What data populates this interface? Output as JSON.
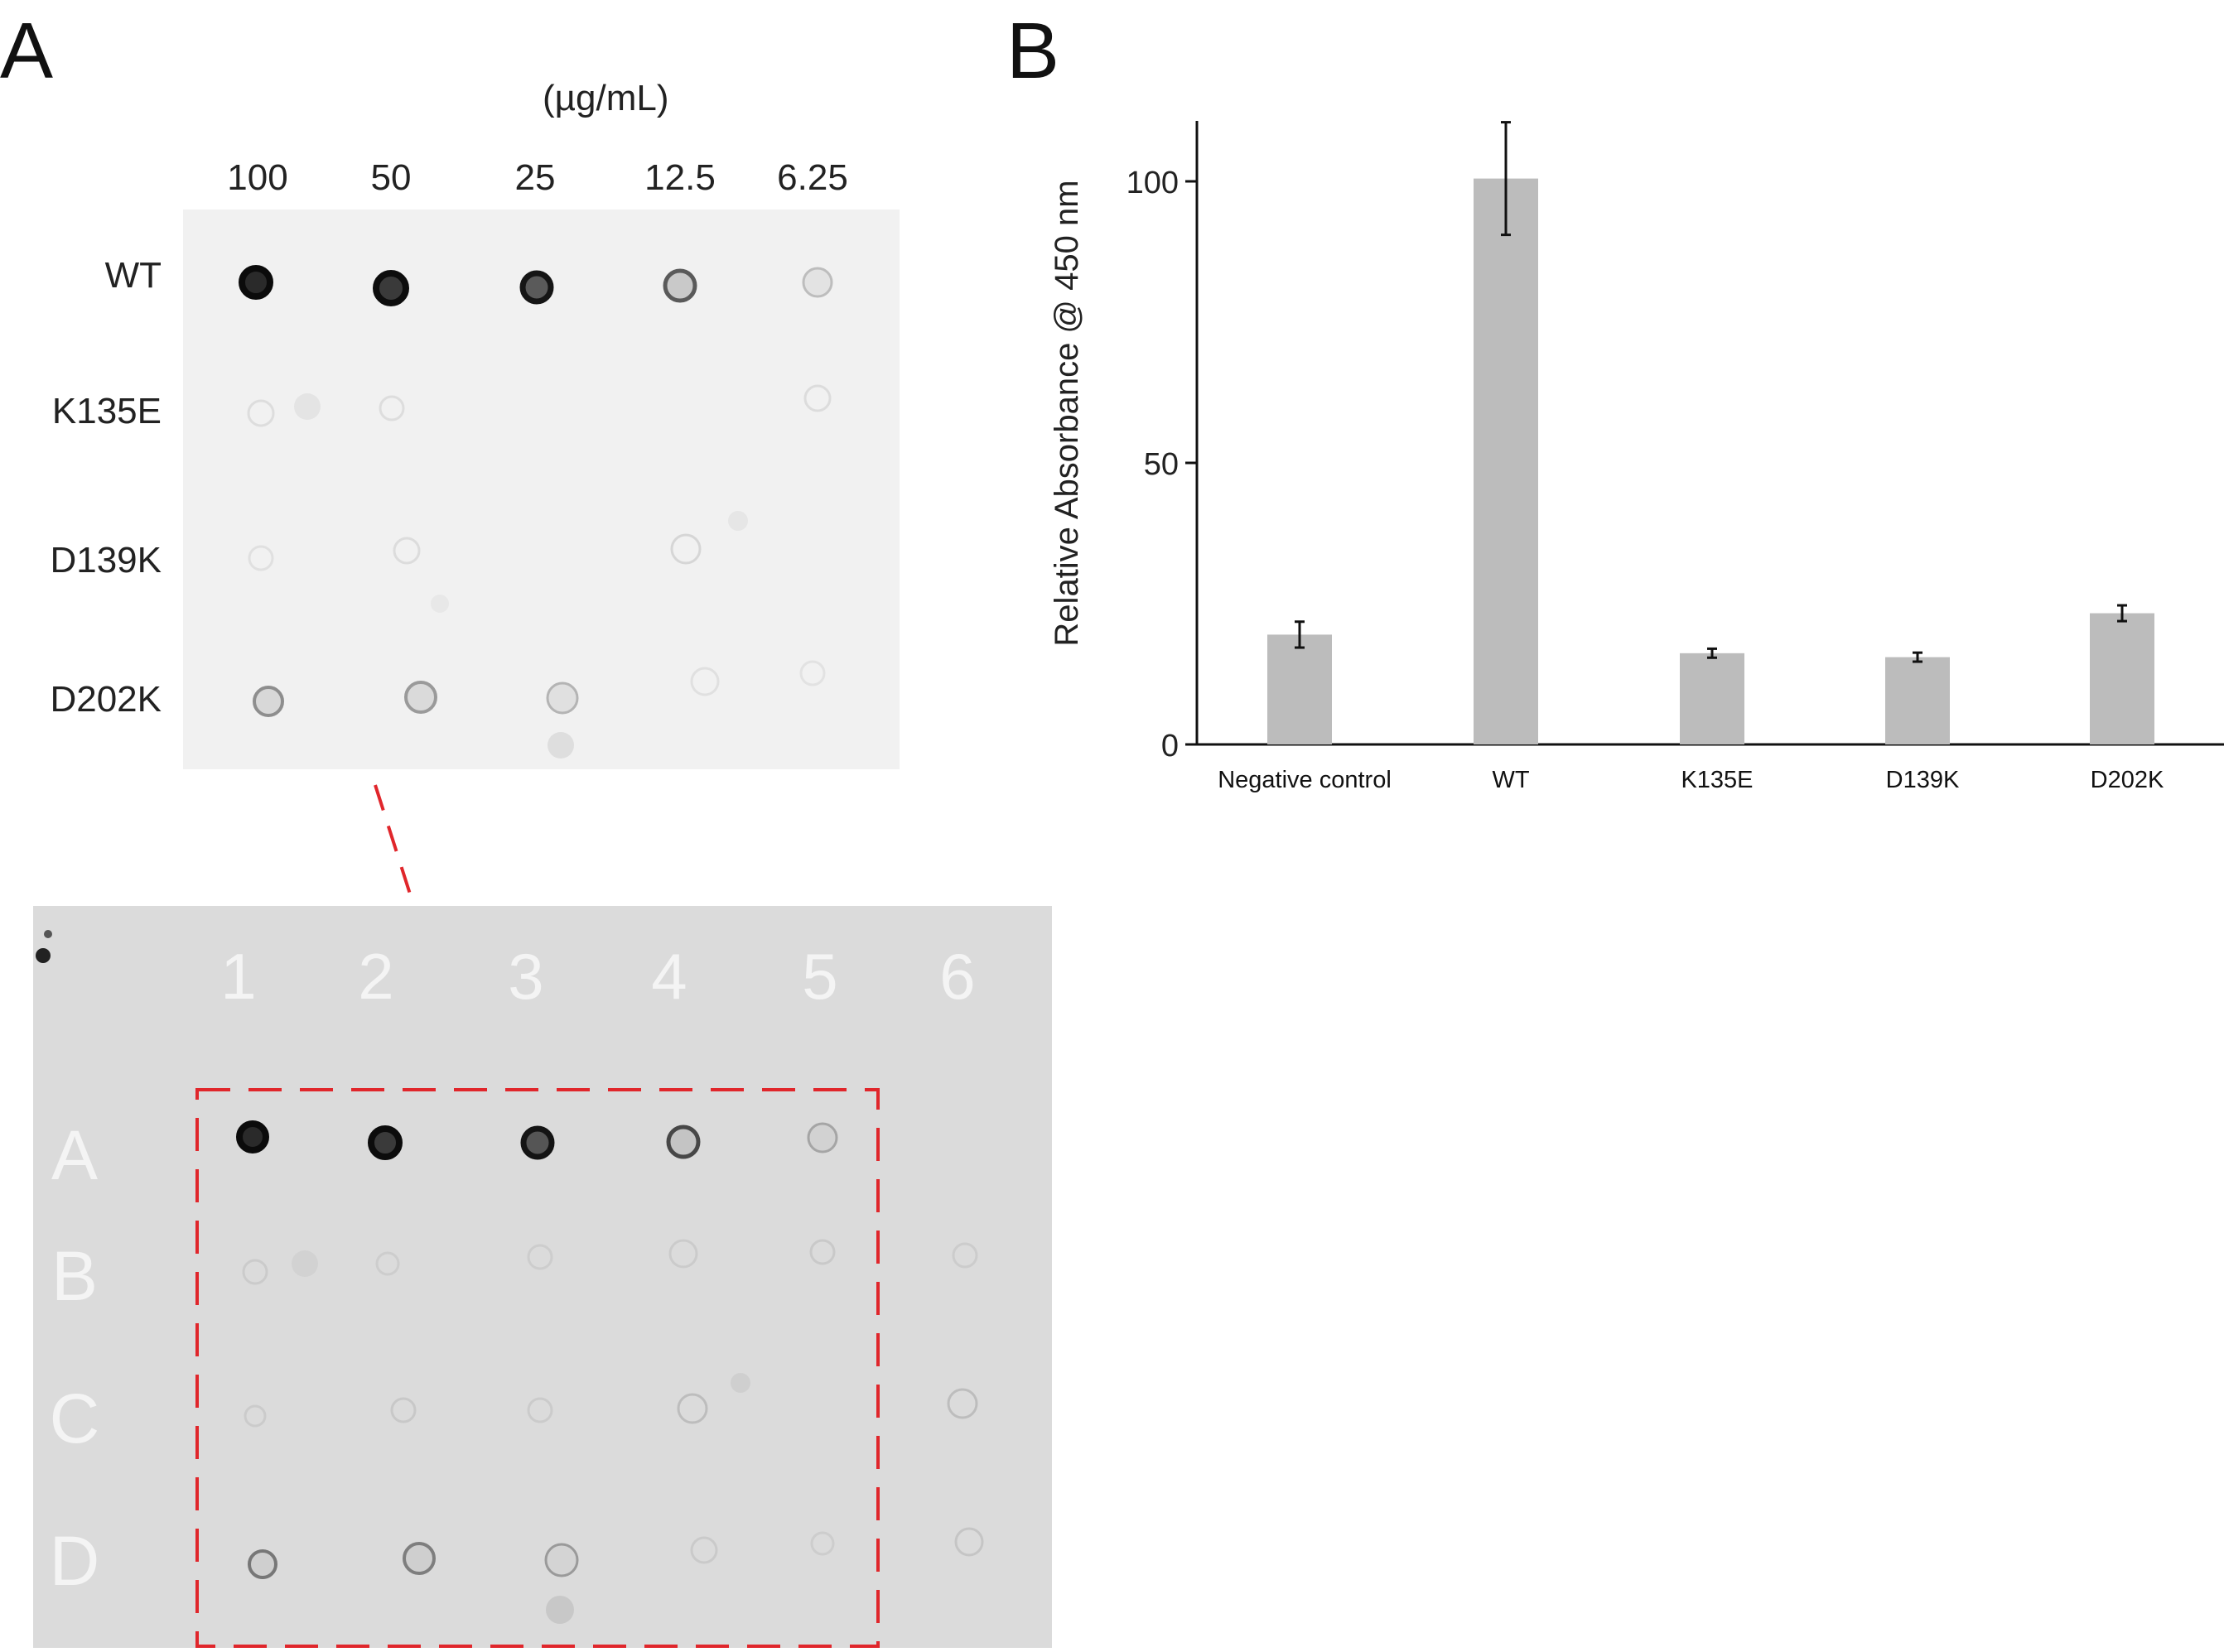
{
  "panel_a": {
    "letter": "A",
    "unit": "(µg/mL)",
    "concentrations": [
      "100",
      "50",
      "25",
      "12.5",
      "6.25"
    ],
    "rows": [
      "WT",
      "K135E",
      "D139K",
      "D202K"
    ],
    "membrane_columns": [
      "1",
      "2",
      "3",
      "4",
      "5",
      "6"
    ],
    "membrane_rows": [
      "A",
      "B",
      "C",
      "D"
    ]
  },
  "panel_b": {
    "letter": "B"
  },
  "chart_data": {
    "type": "bar",
    "title": "",
    "xlabel": "",
    "ylabel": "Relative Absorbance @ 450 nm",
    "categories": [
      "Negative control",
      "WT",
      "K135E",
      "D139K",
      "D202K"
    ],
    "values": [
      19.5,
      100.5,
      16.2,
      15.5,
      23.3
    ],
    "errors": [
      2.3,
      10.0,
      0.8,
      0.8,
      1.4
    ],
    "ylim": [
      0,
      110
    ],
    "yticks": [
      0,
      50,
      100
    ],
    "bar_color": "#bcbcbc",
    "grid": false,
    "legend": "none"
  }
}
